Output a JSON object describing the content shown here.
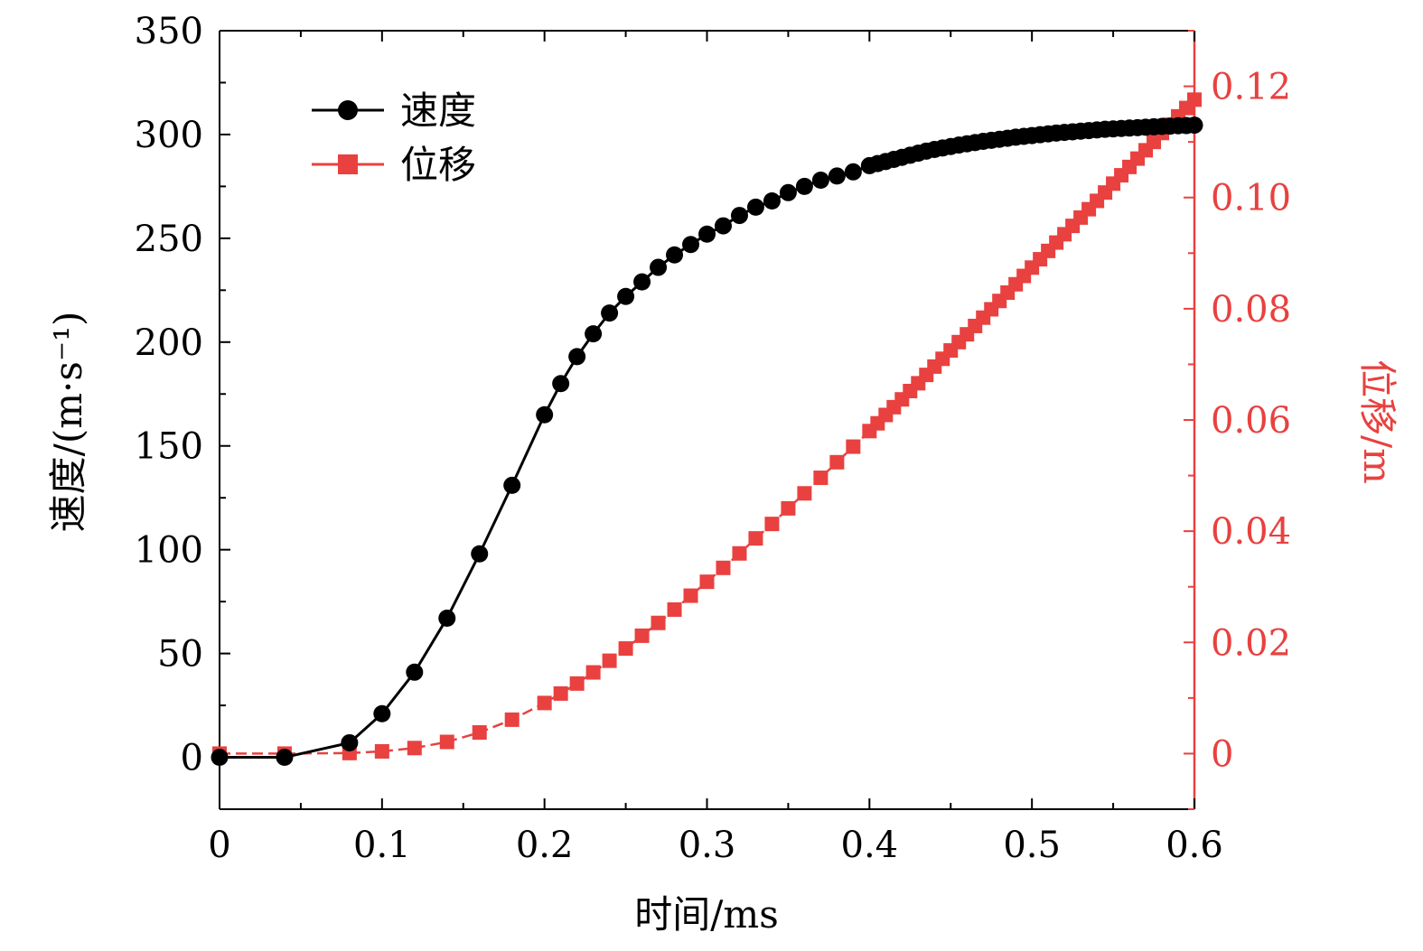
{
  "chart_data": {
    "type": "line",
    "title": "",
    "xlabel": "时间/ms",
    "ylabel_left": "速度/(m·s⁻¹)",
    "ylabel_right": "位移/m",
    "xlim": [
      0,
      0.6
    ],
    "ylim_left": [
      -25,
      350
    ],
    "ylim_right": [
      -0.01,
      0.13
    ],
    "x_ticks": [
      "0",
      "0.1",
      "0.2",
      "0.3",
      "0.4",
      "0.5",
      "0.6"
    ],
    "y_left_ticks": [
      "0",
      "50",
      "100",
      "150",
      "200",
      "250",
      "300",
      "350"
    ],
    "y_right_ticks": [
      "0",
      "0.02",
      "0.04",
      "0.06",
      "0.08",
      "0.10",
      "0.12"
    ],
    "legend_position": "top-left",
    "colors": {
      "velocity": "#000000",
      "displacement": "#e8413f",
      "right_axis": "#e8413f"
    },
    "series": [
      {
        "name": "速度",
        "axis": "left",
        "marker": "circle",
        "x": [
          0,
          0.04,
          0.08,
          0.1,
          0.12,
          0.14,
          0.16,
          0.18,
          0.2,
          0.21,
          0.22,
          0.23,
          0.24,
          0.25,
          0.26,
          0.27,
          0.28,
          0.29,
          0.3,
          0.31,
          0.32,
          0.33,
          0.34,
          0.35,
          0.36,
          0.37,
          0.38,
          0.39,
          0.4,
          0.405,
          0.41,
          0.415,
          0.42,
          0.425,
          0.43,
          0.435,
          0.44,
          0.445,
          0.45,
          0.455,
          0.46,
          0.465,
          0.47,
          0.475,
          0.48,
          0.485,
          0.49,
          0.495,
          0.5,
          0.505,
          0.51,
          0.515,
          0.52,
          0.525,
          0.53,
          0.535,
          0.54,
          0.545,
          0.55,
          0.555,
          0.56,
          0.565,
          0.57,
          0.575,
          0.58,
          0.585,
          0.59,
          0.595,
          0.6
        ],
        "values": [
          0,
          0,
          7,
          21,
          41,
          67,
          98,
          131,
          165,
          180,
          193,
          204,
          214,
          222,
          229,
          236,
          242,
          247,
          252,
          256,
          261,
          265,
          268,
          272,
          275,
          278,
          280,
          282,
          285,
          286,
          287,
          288,
          289,
          290,
          291,
          292,
          292.8,
          293.5,
          294.2,
          294.9,
          295.5,
          296.1,
          296.7,
          297.2,
          297.7,
          298.2,
          298.7,
          299.1,
          299.5,
          299.9,
          300.3,
          300.7,
          301,
          301.3,
          301.6,
          301.9,
          302.2,
          302.5,
          302.7,
          302.9,
          303.1,
          303.3,
          303.5,
          303.7,
          303.9,
          304,
          304.2,
          304.3,
          304.5
        ]
      },
      {
        "name": "位移",
        "axis": "right",
        "marker": "square",
        "x": [
          0,
          0.04,
          0.08,
          0.1,
          0.12,
          0.14,
          0.16,
          0.18,
          0.2,
          0.21,
          0.22,
          0.23,
          0.24,
          0.25,
          0.26,
          0.27,
          0.28,
          0.29,
          0.3,
          0.31,
          0.32,
          0.33,
          0.34,
          0.35,
          0.36,
          0.37,
          0.38,
          0.39,
          0.4,
          0.405,
          0.41,
          0.415,
          0.42,
          0.425,
          0.43,
          0.435,
          0.44,
          0.445,
          0.45,
          0.455,
          0.46,
          0.465,
          0.47,
          0.475,
          0.48,
          0.485,
          0.49,
          0.495,
          0.5,
          0.505,
          0.51,
          0.515,
          0.52,
          0.525,
          0.53,
          0.535,
          0.54,
          0.545,
          0.55,
          0.555,
          0.56,
          0.565,
          0.57,
          0.575,
          0.58,
          0.585,
          0.59,
          0.595,
          0.6
        ],
        "values": [
          0,
          0,
          0.0001,
          0.0004,
          0.001,
          0.0021,
          0.0038,
          0.0061,
          0.0091,
          0.0108,
          0.0126,
          0.0146,
          0.0167,
          0.0189,
          0.0212,
          0.0235,
          0.0259,
          0.0284,
          0.0309,
          0.0334,
          0.036,
          0.0387,
          0.0413,
          0.0441,
          0.0468,
          0.0496,
          0.0524,
          0.0552,
          0.058,
          0.0594,
          0.0609,
          0.0623,
          0.0637,
          0.0652,
          0.0666,
          0.0681,
          0.0696,
          0.071,
          0.0725,
          0.074,
          0.0754,
          0.0769,
          0.0784,
          0.0799,
          0.0814,
          0.0829,
          0.0844,
          0.0859,
          0.0874,
          0.0889,
          0.0904,
          0.0919,
          0.0934,
          0.0949,
          0.0964,
          0.0979,
          0.0994,
          0.1009,
          0.1025,
          0.104,
          0.1055,
          0.107,
          0.1085,
          0.11,
          0.1116,
          0.1131,
          0.1146,
          0.1161,
          0.1176
        ]
      }
    ]
  }
}
